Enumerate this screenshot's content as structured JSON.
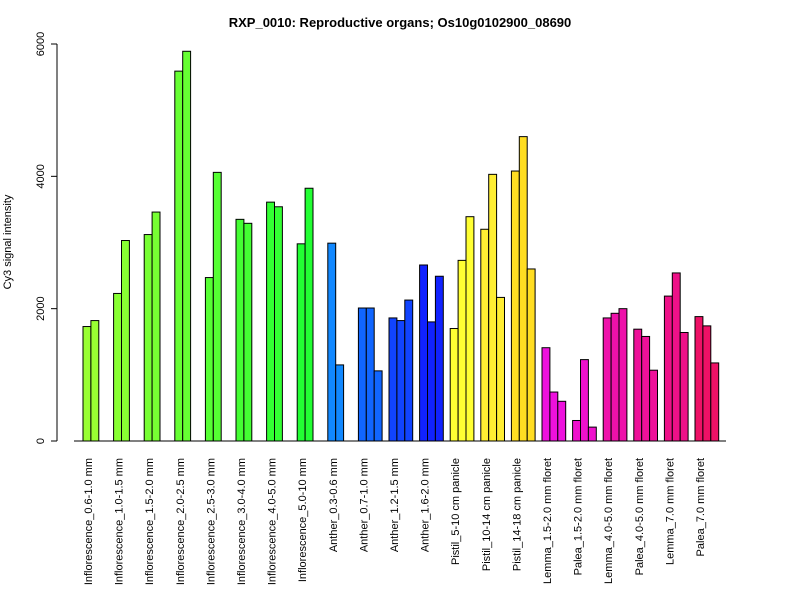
{
  "chart_data": {
    "type": "bar",
    "title": "RXP_0010: Reproductive organs; Os10g0102900_08690",
    "ylabel": "Cy3 signal intensity",
    "xlabel": "",
    "ylim": [
      0,
      6000
    ],
    "yticks": [
      0,
      2000,
      4000,
      6000
    ],
    "grid": false,
    "legend": "none",
    "groups": [
      {
        "label": "Inflorescence_0.6-1.0 mm",
        "color": "#99ff33",
        "values": [
          1730,
          1820
        ]
      },
      {
        "label": "Inflorescence_1.0-1.5 mm",
        "color": "#88ff33",
        "values": [
          2230,
          3030
        ]
      },
      {
        "label": "Inflorescence_1.5-2.0 mm",
        "color": "#77ff33",
        "values": [
          3120,
          3460
        ]
      },
      {
        "label": "Inflorescence_2.0-2.5 mm",
        "color": "#66ff33",
        "values": [
          5590,
          5890
        ]
      },
      {
        "label": "Inflorescence_2.5-3.0 mm",
        "color": "#55ff33",
        "values": [
          2470,
          4060
        ]
      },
      {
        "label": "Inflorescence_3.0-4.0 mm",
        "color": "#44ff33",
        "values": [
          3350,
          3290
        ]
      },
      {
        "label": "Inflorescence_4.0-5.0 mm",
        "color": "#33ff33",
        "values": [
          3610,
          3540
        ]
      },
      {
        "label": "Inflorescence_5.0-10 mm",
        "color": "#22ff33",
        "values": [
          2980,
          3820
        ]
      },
      {
        "label": "Anther_0.3-0.6 mm",
        "color": "#1188ff",
        "values": [
          2990,
          1150
        ]
      },
      {
        "label": "Anther_0.7-1.0 mm",
        "color": "#1166ff",
        "values": [
          2010,
          2010,
          1060
        ]
      },
      {
        "label": "Anther_1.2-1.5 mm",
        "color": "#1144ff",
        "values": [
          1860,
          1820,
          2130
        ]
      },
      {
        "label": "Anther_1.6-2.0 mm",
        "color": "#1122ff",
        "values": [
          2660,
          1800,
          2490
        ]
      },
      {
        "label": "Pistil_5-10 cm panicle",
        "color": "#ffff33",
        "values": [
          1700,
          2730,
          3390
        ]
      },
      {
        "label": "Pistil_10-14 cm panicle",
        "color": "#ffee33",
        "values": [
          3200,
          4030,
          2170
        ]
      },
      {
        "label": "Pistil_14-18 cm panicle",
        "color": "#ffdd22",
        "values": [
          4080,
          4600,
          2600
        ]
      },
      {
        "label": "Lemma_1.5-2.0 mm floret",
        "color": "#ee11dd",
        "values": [
          1410,
          740,
          600
        ]
      },
      {
        "label": "Palea_1.5-2.0 mm floret",
        "color": "#ee11cc",
        "values": [
          310,
          1230,
          210
        ]
      },
      {
        "label": "Lemma_4.0-5.0 mm floret",
        "color": "#ee11aa",
        "values": [
          1860,
          1930,
          2000
        ]
      },
      {
        "label": "Palea_4.0-5.0 mm floret",
        "color": "#ee1199",
        "values": [
          1690,
          1580,
          1070
        ]
      },
      {
        "label": "Lemma_7.0 mm floret",
        "color": "#ee1188",
        "values": [
          2190,
          2540,
          1640
        ]
      },
      {
        "label": "Palea_7.0 mm floret",
        "color": "#ee1166",
        "values": [
          1880,
          1740,
          1180
        ]
      }
    ]
  }
}
